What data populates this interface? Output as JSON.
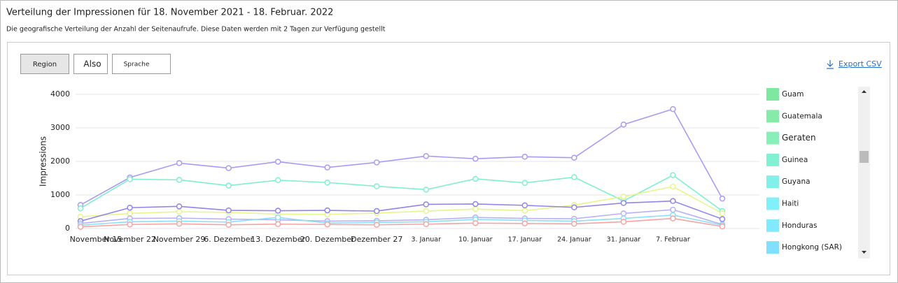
{
  "header": {
    "title": "Verteilung der Impressionen für 18. November 2021 - 18. Februar. 2022",
    "subtitle": "Die geografische Verteilung der Anzahl der Seitenaufrufe. Diese Daten werden mit 2 Tagen zur Verfügung gestellt"
  },
  "toolbar": {
    "buttons": [
      "Region",
      "Also",
      "Sprache"
    ],
    "export": "Export CSV"
  },
  "chart_data": {
    "type": "line",
    "y_label": "Impressions",
    "categories": [
      "November 15",
      "November 22",
      "November 29",
      "6. Dezember",
      "13. Dezember",
      "20. Dezember",
      "Dezember 27",
      "3. Januar",
      "10. Januar",
      "17. Januar",
      "24. Januar",
      "31. Januar",
      "7. Februar",
      null
    ],
    "series": [
      {
        "color": "#a99cf0",
        "values": [
          700,
          1520,
          1950,
          1800,
          1990,
          1820,
          1970,
          2160,
          2080,
          2140,
          2110,
          3100,
          3560,
          890
        ]
      },
      {
        "color": "#80efd0",
        "values": [
          600,
          1470,
          1450,
          1280,
          1440,
          1370,
          1260,
          1160,
          1480,
          1360,
          1530,
          820,
          1590,
          520
        ]
      },
      {
        "color": "#e6f58c",
        "values": [
          350,
          450,
          500,
          480,
          430,
          420,
          460,
          520,
          580,
          530,
          700,
          950,
          1250,
          450
        ]
      },
      {
        "color": "#8f86e8",
        "values": [
          220,
          620,
          660,
          540,
          530,
          540,
          520,
          720,
          730,
          690,
          630,
          760,
          820,
          280
        ]
      },
      {
        "color": "#b9b0f5",
        "values": [
          150,
          300,
          310,
          280,
          260,
          220,
          230,
          260,
          330,
          300,
          290,
          450,
          560,
          120
        ]
      },
      {
        "color": "#8ce0f5",
        "values": [
          100,
          200,
          220,
          190,
          330,
          160,
          180,
          200,
          270,
          240,
          220,
          300,
          400,
          100
        ]
      },
      {
        "color": "#f5a3a3",
        "values": [
          50,
          120,
          140,
          110,
          130,
          120,
          110,
          130,
          160,
          150,
          140,
          200,
          300,
          60
        ]
      }
    ],
    "ylim": [
      0,
      4000
    ],
    "yticks": [
      0,
      1000,
      2000,
      3000,
      4000
    ],
    "grid": true,
    "legend": [
      {
        "name": "Guam",
        "color": "#7fe8a0"
      },
      {
        "name": "Guatemala",
        "color": "#86eba8"
      },
      {
        "name": "Geraten",
        "color": "#88efb8"
      },
      {
        "name": "Guinea",
        "color": "#82f0d2"
      },
      {
        "name": "Guyana",
        "color": "#82f0e8"
      },
      {
        "name": "Haiti",
        "color": "#82f0fa"
      },
      {
        "name": "Honduras",
        "color": "#82eaff"
      },
      {
        "name": "Hongkong (SAR)",
        "color": "#82e0ff"
      }
    ]
  }
}
